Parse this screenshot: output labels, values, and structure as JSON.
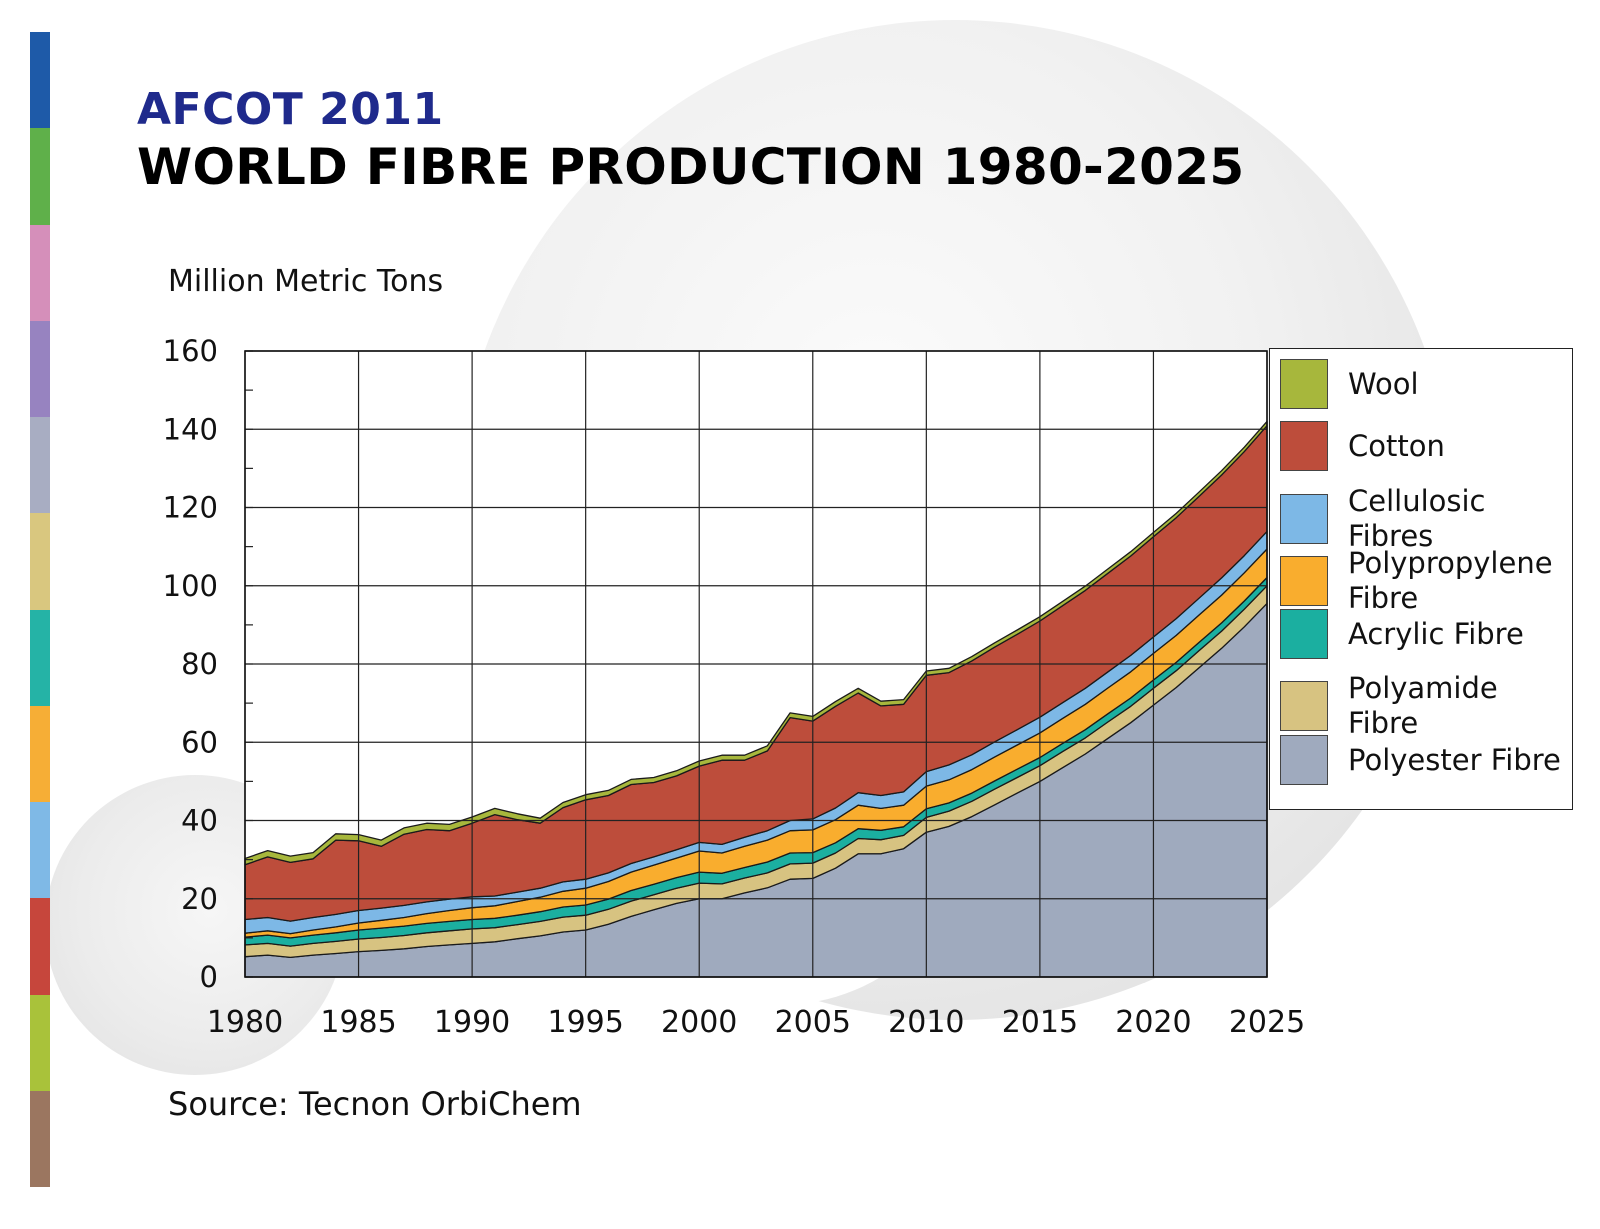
{
  "page": {
    "supertitle": "AFCOT 2011",
    "title": "WORLD FIBRE PRODUCTION 1980-2025",
    "source": "Source: Tecnon OrbiChem"
  },
  "decor": {
    "stripe_colors": [
      "#1e5aa8",
      "#5fb04a",
      "#d58fba",
      "#9783c0",
      "#a8adc2",
      "#d9c77f",
      "#25b3a6",
      "#f6ae36",
      "#7fb9e6",
      "#c6463c",
      "#a9c23a",
      "#9b7660"
    ]
  },
  "chart_data": {
    "type": "area",
    "title": "WORLD FIBRE PRODUCTION 1980-2025",
    "xlabel": "",
    "ylabel": "Million Metric Tons",
    "xlim": [
      1980,
      2025
    ],
    "ylim": [
      0,
      160
    ],
    "x_ticks": [
      1980,
      1985,
      1990,
      1995,
      2000,
      2005,
      2010,
      2015,
      2020,
      2025
    ],
    "y_ticks": [
      0,
      20,
      40,
      60,
      80,
      100,
      120,
      140,
      160
    ],
    "grid": true,
    "stacked": true,
    "legend_position": "right",
    "x": [
      1980,
      1981,
      1982,
      1983,
      1984,
      1985,
      1986,
      1987,
      1988,
      1989,
      1990,
      1991,
      1992,
      1993,
      1994,
      1995,
      1996,
      1997,
      1998,
      1999,
      2000,
      2001,
      2002,
      2003,
      2004,
      2005,
      2006,
      2007,
      2008,
      2009,
      2010,
      2011,
      2012,
      2013,
      2014,
      2015,
      2016,
      2017,
      2018,
      2019,
      2020,
      2021,
      2022,
      2023,
      2024,
      2025
    ],
    "series": [
      {
        "name": "Polyester Fibre",
        "color": "#9faabe",
        "values": [
          5.2,
          5.6,
          5.0,
          5.6,
          6.0,
          6.5,
          6.8,
          7.2,
          7.8,
          8.2,
          8.6,
          9.0,
          9.8,
          10.5,
          11.5,
          12.0,
          13.5,
          15.5,
          17.2,
          18.8,
          20.0,
          20.0,
          21.5,
          22.8,
          25.0,
          25.2,
          27.8,
          31.5,
          31.5,
          32.8,
          37.0,
          38.5,
          41.0,
          44.0,
          47.0,
          50.0,
          53.5,
          57.0,
          61.0,
          65.0,
          69.5,
          74.0,
          79.0,
          84.0,
          89.5,
          95.5
        ]
      },
      {
        "name": "Polyamide Fibre",
        "color": "#d7c381",
        "values": [
          3.0,
          3.0,
          2.9,
          3.0,
          3.1,
          3.2,
          3.3,
          3.4,
          3.5,
          3.6,
          3.7,
          3.6,
          3.6,
          3.7,
          3.8,
          3.8,
          3.8,
          3.9,
          3.8,
          3.9,
          4.0,
          3.8,
          3.8,
          3.8,
          3.9,
          3.9,
          3.9,
          3.9,
          3.6,
          3.4,
          3.8,
          3.9,
          3.9,
          4.0,
          4.0,
          4.0,
          4.1,
          4.1,
          4.2,
          4.2,
          4.3,
          4.3,
          4.4,
          4.4,
          4.5,
          4.5
        ]
      },
      {
        "name": "Acrylic Fibre",
        "color": "#1bafa0",
        "values": [
          2.0,
          2.1,
          2.1,
          2.1,
          2.2,
          2.3,
          2.4,
          2.4,
          2.4,
          2.4,
          2.4,
          2.4,
          2.4,
          2.5,
          2.6,
          2.6,
          2.6,
          2.7,
          2.7,
          2.7,
          2.8,
          2.7,
          2.7,
          2.8,
          2.8,
          2.7,
          2.6,
          2.5,
          2.4,
          2.2,
          2.2,
          2.1,
          2.1,
          2.1,
          2.1,
          2.1,
          2.1,
          2.1,
          2.1,
          2.1,
          2.1,
          2.1,
          2.1,
          2.1,
          2.1,
          2.1
        ]
      },
      {
        "name": "Polypropylene Fibre",
        "color": "#f9ad2e",
        "values": [
          1.0,
          1.1,
          1.1,
          1.3,
          1.5,
          1.8,
          2.0,
          2.2,
          2.5,
          2.8,
          3.0,
          3.2,
          3.5,
          3.7,
          4.0,
          4.3,
          4.5,
          4.7,
          4.9,
          5.0,
          5.4,
          5.2,
          5.4,
          5.6,
          5.7,
          5.8,
          5.9,
          6.0,
          5.6,
          5.5,
          5.8,
          5.9,
          6.0,
          6.1,
          6.2,
          6.3,
          6.4,
          6.5,
          6.6,
          6.7,
          6.8,
          6.9,
          7.0,
          7.1,
          7.2,
          7.3
        ]
      },
      {
        "name": "Cellulosic Fibres",
        "color": "#7db8e6",
        "values": [
          3.5,
          3.4,
          3.2,
          3.2,
          3.2,
          3.2,
          3.1,
          3.1,
          3.0,
          2.9,
          2.8,
          2.5,
          2.4,
          2.3,
          2.4,
          2.3,
          2.2,
          2.2,
          2.1,
          2.1,
          2.2,
          2.2,
          2.3,
          2.4,
          2.6,
          2.8,
          3.0,
          3.2,
          3.3,
          3.4,
          3.7,
          3.8,
          3.8,
          3.9,
          3.9,
          4.0,
          4.0,
          4.1,
          4.1,
          4.2,
          4.2,
          4.3,
          4.3,
          4.4,
          4.4,
          4.5
        ]
      },
      {
        "name": "Cotton",
        "color": "#bd4d3b",
        "values": [
          14.0,
          15.5,
          15.0,
          15.0,
          19.0,
          17.8,
          15.8,
          18.2,
          18.5,
          17.5,
          18.8,
          20.8,
          18.5,
          16.6,
          19.0,
          20.3,
          19.8,
          20.2,
          19.0,
          18.9,
          19.5,
          21.5,
          19.7,
          20.4,
          26.3,
          25.0,
          26.0,
          25.5,
          22.9,
          22.4,
          24.6,
          23.6,
          24.0,
          24.2,
          24.4,
          24.6,
          24.8,
          25.0,
          25.2,
          25.4,
          25.6,
          25.8,
          26.0,
          26.3,
          26.6,
          27.0
        ]
      },
      {
        "name": "Wool",
        "color": "#a7b73c",
        "values": [
          1.6,
          1.6,
          1.6,
          1.6,
          1.6,
          1.6,
          1.6,
          1.6,
          1.6,
          1.6,
          1.6,
          1.6,
          1.5,
          1.3,
          1.3,
          1.3,
          1.3,
          1.3,
          1.3,
          1.3,
          1.3,
          1.3,
          1.3,
          1.3,
          1.2,
          1.2,
          1.2,
          1.2,
          1.2,
          1.2,
          1.1,
          1.1,
          1.1,
          1.1,
          1.1,
          1.1,
          1.1,
          1.1,
          1.1,
          1.1,
          1.1,
          1.1,
          1.1,
          1.1,
          1.1,
          1.1
        ]
      }
    ]
  },
  "legend": {
    "items": [
      {
        "label": "Wool",
        "color": "#a7b73c"
      },
      {
        "label": "Cotton",
        "color": "#bd4d3b"
      },
      {
        "label": "Cellulosic Fibres",
        "color": "#7db8e6"
      },
      {
        "label": "Polypropylene Fibre",
        "color": "#f9ad2e"
      },
      {
        "label": "Acrylic Fibre",
        "color": "#1bafa0"
      },
      {
        "label": "Polyamide Fibre",
        "color": "#d7c381"
      },
      {
        "label": "Polyester Fibre",
        "color": "#9faabe"
      }
    ]
  }
}
